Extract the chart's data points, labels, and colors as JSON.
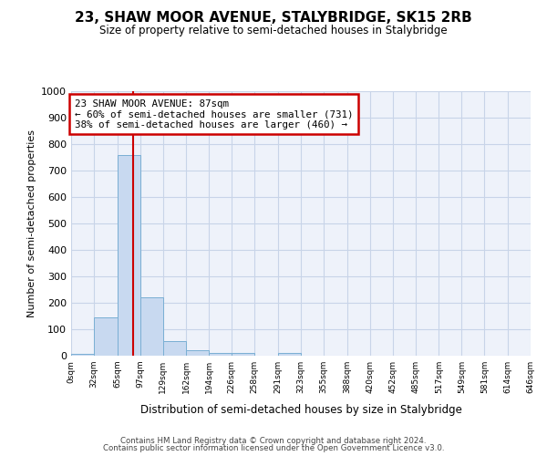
{
  "title": "23, SHAW MOOR AVENUE, STALYBRIDGE, SK15 2RB",
  "subtitle": "Size of property relative to semi-detached houses in Stalybridge",
  "xlabel": "Distribution of semi-detached houses by size in Stalybridge",
  "ylabel": "Number of semi-detached properties",
  "bin_edges": [
    0,
    32,
    65,
    97,
    129,
    162,
    194,
    226,
    258,
    291,
    323,
    355,
    388,
    420,
    452,
    485,
    517,
    549,
    581,
    614,
    646
  ],
  "bar_heights": [
    8,
    145,
    760,
    220,
    55,
    22,
    12,
    10,
    0,
    10,
    0,
    0,
    0,
    0,
    0,
    0,
    0,
    0,
    0,
    0
  ],
  "bar_color": "#c8d9f0",
  "bar_edge_color": "#7aafd4",
  "grid_color": "#c8d4e8",
  "vline_x": 87,
  "vline_color": "#cc0000",
  "annotation_line1": "23 SHAW MOOR AVENUE: 87sqm",
  "annotation_line2": "← 60% of semi-detached houses are smaller (731)",
  "annotation_line3": "38% of semi-detached houses are larger (460) →",
  "annotation_box_color": "#ffffff",
  "annotation_box_edge": "#cc0000",
  "ylim": [
    0,
    1000
  ],
  "yticks": [
    0,
    100,
    200,
    300,
    400,
    500,
    600,
    700,
    800,
    900,
    1000
  ],
  "footer_line1": "Contains HM Land Registry data © Crown copyright and database right 2024.",
  "footer_line2": "Contains public sector information licensed under the Open Government Licence v3.0.",
  "bg_color": "#ffffff",
  "plot_bg_color": "#eef2fa"
}
